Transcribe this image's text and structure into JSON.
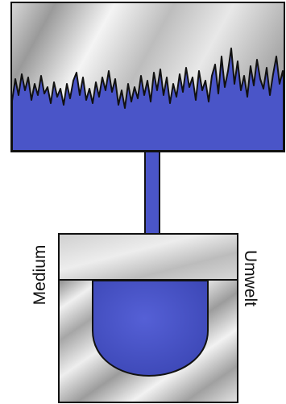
{
  "labels": {
    "left": "Medium",
    "right": "Umwelt"
  },
  "colors": {
    "fill_blue": "#4a55c8",
    "outline": "#111111",
    "steel_light": "#f2f2f2",
    "steel_mid": "#bdbdbd",
    "steel_dark": "#8c8c8c"
  },
  "icons": {
    "arrow": "down-arrow-icon",
    "signal": "noise-signal-icon"
  }
}
